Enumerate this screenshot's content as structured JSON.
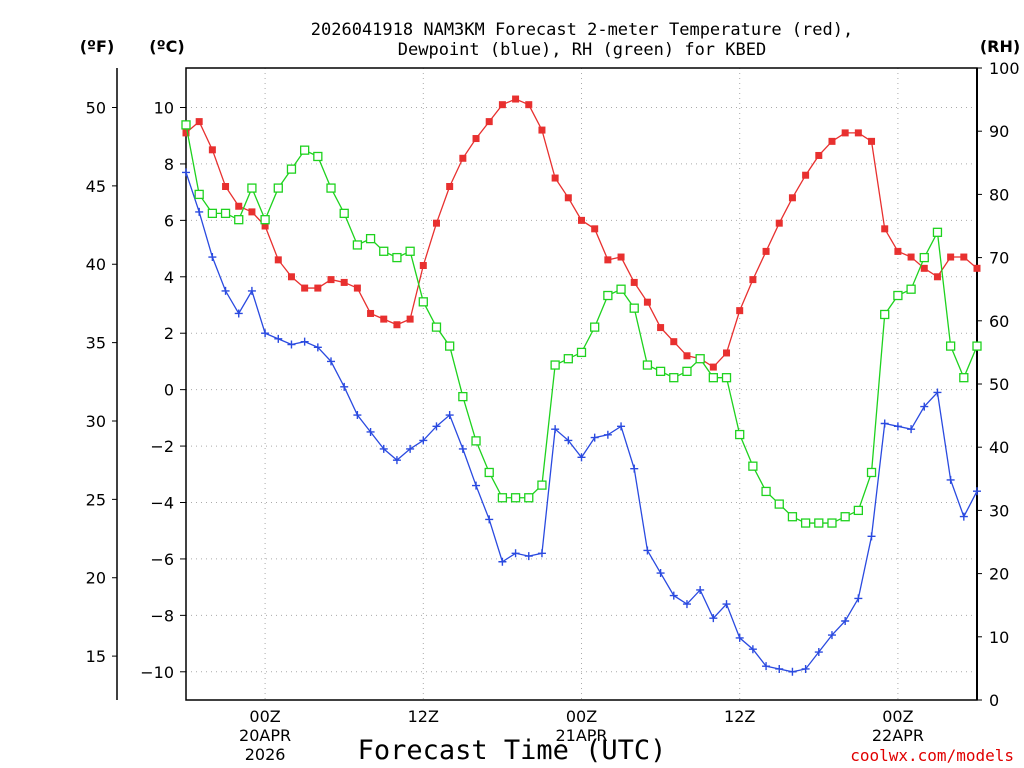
{
  "chart_data": {
    "type": "line",
    "title_line1": "2026041918 NAM3KM Forecast 2-meter Temperature (red),",
    "title_line2": "Dewpoint (blue), RH (green) for KBED",
    "xlabel": "Forecast Time (UTC)",
    "credit": "coolwx.com/models",
    "left_outer_unit": "(ºF)",
    "left_inner_unit": "(ºC)",
    "right_unit": "(RH)",
    "fahrenheit_ticks": [
      "50",
      "45",
      "40",
      "35",
      "30",
      "25",
      "20",
      "15"
    ],
    "celsius_ticks": [
      "10",
      "8",
      "6",
      "4",
      "2",
      "0",
      "−2",
      "−4",
      "−6",
      "−8",
      "−10"
    ],
    "rh_ticks": [
      "100",
      "90",
      "80",
      "70",
      "60",
      "50",
      "40",
      "30",
      "20",
      "10",
      "0"
    ],
    "x_ticks": [
      {
        "hour": 6,
        "line1": "00Z",
        "line2": "20APR",
        "line3": "2026"
      },
      {
        "hour": 18,
        "line1": "12Z",
        "line2": "",
        "line3": ""
      },
      {
        "hour": 30,
        "line1": "00Z",
        "line2": "21APR",
        "line3": ""
      },
      {
        "hour": 42,
        "line1": "12Z",
        "line2": "",
        "line3": ""
      },
      {
        "hour": 54,
        "line1": "00Z",
        "line2": "22APR",
        "line3": ""
      }
    ],
    "xlim": [
      0,
      60
    ],
    "celsius_range": [
      -11,
      11.4
    ],
    "rh_range": [
      0,
      100
    ],
    "series": [
      {
        "name": "Temperature (C)",
        "color": "#e8302f",
        "unit": "C",
        "values": [
          9.1,
          9.5,
          8.5,
          7.2,
          6.5,
          6.3,
          5.8,
          4.6,
          4.0,
          3.6,
          3.6,
          3.9,
          3.8,
          3.6,
          2.7,
          2.5,
          2.3,
          2.5,
          4.4,
          5.9,
          7.2,
          8.2,
          8.9,
          9.5,
          10.1,
          10.3,
          10.1,
          9.2,
          7.5,
          6.8,
          6.0,
          5.7,
          4.6,
          4.7,
          3.8,
          3.1,
          2.2,
          1.7,
          1.2,
          1.1,
          0.8,
          1.3,
          2.8,
          3.9,
          4.9,
          5.9,
          6.8,
          7.6,
          8.3,
          8.8,
          9.1,
          9.1,
          8.8,
          5.7,
          4.9,
          4.7,
          4.3,
          4.0,
          4.7,
          4.7,
          4.3
        ]
      },
      {
        "name": "Dewpoint (C)",
        "color": "#2a4ae0",
        "unit": "C",
        "values": [
          7.7,
          6.3,
          4.7,
          3.5,
          2.7,
          3.5,
          2.0,
          1.8,
          1.6,
          1.7,
          1.5,
          1.0,
          0.1,
          -0.9,
          -1.5,
          -2.1,
          -2.5,
          -2.1,
          -1.8,
          -1.3,
          -0.9,
          -2.1,
          -3.4,
          -4.6,
          -6.1,
          -5.8,
          -5.9,
          -5.8,
          -1.4,
          -1.8,
          -2.4,
          -1.7,
          -1.6,
          -1.3,
          -2.8,
          -5.7,
          -6.5,
          -7.3,
          -7.6,
          -7.1,
          -8.1,
          -7.6,
          -8.8,
          -9.2,
          -9.8,
          -9.9,
          -10.0,
          -9.9,
          -9.3,
          -8.7,
          -8.2,
          -7.4,
          -5.2,
          -1.2,
          -1.3,
          -1.4,
          -0.6,
          -0.1,
          -3.2,
          -4.5,
          -3.6
        ]
      },
      {
        "name": "RH (%)",
        "color": "#1ed21e",
        "unit": "%",
        "values": [
          91,
          80,
          77,
          77,
          76,
          81,
          76,
          81,
          84,
          87,
          86,
          81,
          77,
          72,
          73,
          71,
          70,
          71,
          63,
          59,
          56,
          48,
          41,
          36,
          32,
          32,
          32,
          34,
          53,
          54,
          55,
          59,
          64,
          65,
          62,
          53,
          52,
          51,
          52,
          54,
          51,
          51,
          42,
          37,
          33,
          31,
          29,
          28,
          28,
          28,
          29,
          30,
          36,
          61,
          64,
          65,
          70,
          74,
          56,
          51,
          56
        ]
      }
    ]
  }
}
